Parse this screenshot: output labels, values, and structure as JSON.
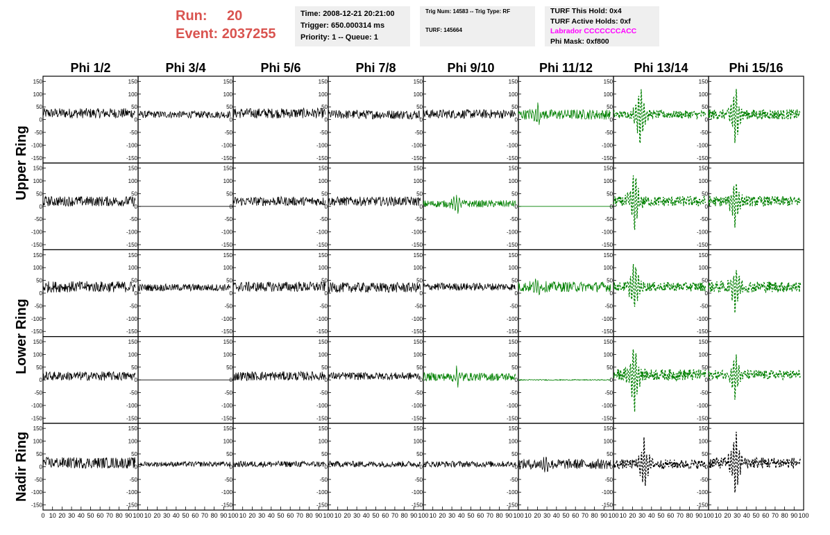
{
  "header": {
    "run_label": "Run:",
    "run_value": "20",
    "event_label": "Event:",
    "event_value": "2037255"
  },
  "trigger_box": {
    "time": "Time: 2008-12-21 20:21:00",
    "trigger": "Trigger: 650.000314 ms",
    "priority": "Priority: 1 -- Queue: 1"
  },
  "trig_box": {
    "trig": "Trig Num: 14583 -- Trig Type: RF",
    "turf": "TURF: 145664"
  },
  "turf_box": {
    "hold": "TURF This Hold: 0x4",
    "active": "TURF Active Holds: 0xf",
    "labrador": "Labrador CCCCCCCACC",
    "phimask": "Phi Mask: 0xf800"
  },
  "colors": {
    "normal_trace": "#000000",
    "triggered_trace": "#008000",
    "run_text": "#d9534f",
    "labrador_text": "#ff00ff",
    "box_bg": "#efefef"
  },
  "chart_data": {
    "type": "line",
    "columns": [
      "Phi 1/2",
      "Phi 3/4",
      "Phi 5/6",
      "Phi 7/8",
      "Phi 9/10",
      "Phi 11/12",
      "Phi 13/14",
      "Phi 15/16"
    ],
    "rows": [
      "Upper Ring",
      "Lower Ring",
      "Nadir Ring"
    ],
    "panel_rows": 5,
    "xlim": [
      0,
      100
    ],
    "x_ticks": [
      0,
      10,
      20,
      30,
      40,
      50,
      60,
      70,
      80,
      90,
      100
    ],
    "ylim": [
      -170,
      170
    ],
    "y_ticks": [
      -150,
      -100,
      -50,
      0,
      50,
      100,
      150
    ],
    "grid": false,
    "panels": [
      [
        {
          "s": "solid",
          "c": "black",
          "a": 20,
          "o": 25
        },
        {
          "s": "solid",
          "c": "black",
          "a": 14,
          "o": 20
        },
        {
          "s": "solid",
          "c": "black",
          "a": 20,
          "o": 25
        },
        {
          "s": "solid",
          "c": "black",
          "a": 18,
          "o": 20
        },
        {
          "s": "solid",
          "c": "black",
          "a": 18,
          "o": 22
        },
        {
          "s": "solid",
          "c": "green",
          "a": 20,
          "o": 20,
          "b": [
            20,
            45
          ]
        },
        {
          "s": "dashed",
          "c": "green",
          "a": 15,
          "o": 20,
          "b": [
            28,
            150
          ]
        },
        {
          "s": "dashed",
          "c": "green",
          "a": 20,
          "o": 20,
          "b": [
            28,
            130
          ]
        }
      ],
      [
        {
          "s": "solid",
          "c": "black",
          "a": 20,
          "o": 20
        },
        {
          "s": "flat",
          "c": "black",
          "o": 0
        },
        {
          "s": "solid",
          "c": "black",
          "a": 18,
          "o": 20
        },
        {
          "s": "solid",
          "c": "black",
          "a": 18,
          "o": 20
        },
        {
          "s": "solid",
          "c": "green",
          "a": 14,
          "o": 10,
          "b": [
            35,
            40
          ]
        },
        {
          "s": "flat",
          "c": "green",
          "o": 0
        },
        {
          "s": "dashed",
          "c": "green",
          "a": 20,
          "o": 20,
          "b": [
            22,
            150
          ]
        },
        {
          "s": "dashed",
          "c": "green",
          "a": 20,
          "o": 20,
          "b": [
            28,
            110
          ]
        }
      ],
      [
        {
          "s": "solid",
          "c": "black",
          "a": 22,
          "o": 25
        },
        {
          "s": "solid",
          "c": "black",
          "a": 14,
          "o": 22
        },
        {
          "s": "solid",
          "c": "black",
          "a": 20,
          "o": 25
        },
        {
          "s": "solid",
          "c": "black",
          "a": 20,
          "o": 22
        },
        {
          "s": "solid",
          "c": "black",
          "a": 15,
          "o": 25
        },
        {
          "s": "solid",
          "c": "green",
          "a": 20,
          "o": 25,
          "b": [
            20,
            30
          ]
        },
        {
          "s": "dashed",
          "c": "green",
          "a": 18,
          "o": 25,
          "b": [
            22,
            110
          ]
        },
        {
          "s": "dashed",
          "c": "green",
          "a": 22,
          "o": 25,
          "b": [
            28,
            110
          ]
        }
      ],
      [
        {
          "s": "solid",
          "c": "black",
          "a": 18,
          "o": 15
        },
        {
          "s": "flat",
          "c": "black",
          "o": 0
        },
        {
          "s": "solid",
          "c": "black",
          "a": 18,
          "o": 15
        },
        {
          "s": "solid",
          "c": "black",
          "a": 15,
          "o": 15
        },
        {
          "s": "solid",
          "c": "green",
          "a": 16,
          "o": 12,
          "b": [
            35,
            40
          ]
        },
        {
          "s": "solid",
          "c": "green",
          "a": 2,
          "o": 0
        },
        {
          "s": "dashed",
          "c": "green",
          "a": 22,
          "o": 20,
          "b": [
            22,
            150
          ]
        },
        {
          "s": "dashed",
          "c": "green",
          "a": 18,
          "o": 20,
          "b": [
            28,
            100
          ]
        }
      ],
      [
        {
          "s": "solid",
          "c": "black",
          "a": 22,
          "o": 15
        },
        {
          "s": "solid",
          "c": "black",
          "a": 10,
          "o": 10
        },
        {
          "s": "solid",
          "c": "black",
          "a": 12,
          "o": 10
        },
        {
          "s": "solid",
          "c": "black",
          "a": 12,
          "o": 10
        },
        {
          "s": "solid",
          "c": "black",
          "a": 12,
          "o": 10
        },
        {
          "s": "solid",
          "c": "black",
          "a": 20,
          "o": 10,
          "b": [
            28,
            25
          ]
        },
        {
          "s": "dashed",
          "c": "black",
          "a": 18,
          "o": 10,
          "b": [
            32,
            110
          ]
        },
        {
          "s": "dashed",
          "c": "black",
          "a": 22,
          "o": 15,
          "b": [
            28,
            160
          ]
        }
      ]
    ]
  }
}
